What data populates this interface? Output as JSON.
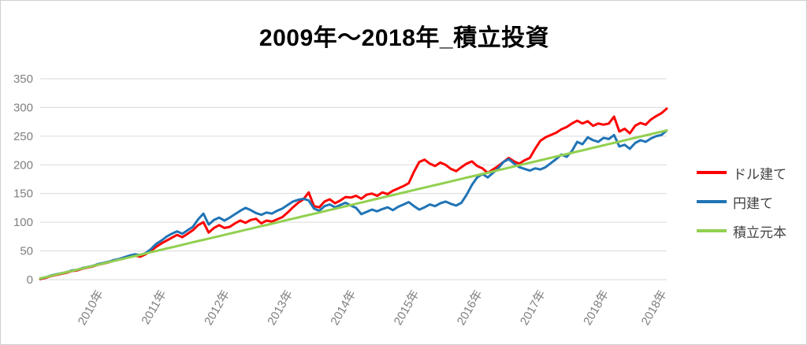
{
  "page": {
    "background": "#ffffff",
    "border_color": "#cfcfcf"
  },
  "chart_data": {
    "type": "line",
    "title": "2009年～2018年_積立投資",
    "xlabel": "",
    "ylabel": "",
    "x": {
      "start_year": 2009,
      "interval_months": 1,
      "points": 120,
      "end_year": 2018
    },
    "x_tick_labels": [
      "2010年",
      "2011年",
      "2012年",
      "2013年",
      "2014年",
      "2015年",
      "2016年",
      "2017年",
      "2018年",
      "2018年"
    ],
    "y_ticks": [
      0,
      50,
      100,
      150,
      200,
      250,
      300,
      350
    ],
    "ylim": [
      0,
      350
    ],
    "grid": true,
    "grid_color": "#d9d9d9",
    "tick_label_color": "#7f7f7f",
    "legend_position": "right",
    "series": [
      {
        "name": "ドル建て",
        "color": "#ff0000",
        "values": [
          1,
          3,
          6,
          8,
          10,
          12,
          15,
          16,
          19,
          21,
          23,
          26,
          28,
          30,
          33,
          35,
          37,
          40,
          42,
          40,
          44,
          50,
          57,
          63,
          68,
          73,
          78,
          74,
          80,
          86,
          95,
          100,
          82,
          90,
          95,
          90,
          92,
          98,
          103,
          99,
          104,
          106,
          98,
          103,
          101,
          105,
          109,
          117,
          126,
          134,
          140,
          152,
          128,
          126,
          136,
          140,
          133,
          138,
          144,
          143,
          146,
          141,
          148,
          150,
          146,
          152,
          149,
          155,
          159,
          163,
          168,
          188,
          205,
          209,
          202,
          198,
          204,
          200,
          193,
          189,
          196,
          202,
          206,
          198,
          194,
          186,
          192,
          198,
          205,
          212,
          206,
          202,
          208,
          212,
          228,
          242,
          248,
          252,
          256,
          262,
          266,
          272,
          277,
          272,
          276,
          268,
          272,
          270,
          272,
          284,
          258,
          263,
          255,
          268,
          273,
          270,
          279,
          285,
          290,
          298
        ]
      },
      {
        "name": "円建て",
        "color": "#2074b5",
        "values": [
          2,
          4,
          7,
          9,
          11,
          13,
          16,
          17,
          20,
          22,
          24,
          27,
          29,
          31,
          34,
          36,
          39,
          42,
          44,
          43,
          46,
          53,
          62,
          68,
          75,
          80,
          84,
          80,
          86,
          92,
          105,
          115,
          96,
          104,
          108,
          103,
          108,
          114,
          120,
          125,
          121,
          116,
          113,
          117,
          115,
          120,
          124,
          130,
          136,
          139,
          141,
          138,
          124,
          120,
          128,
          131,
          126,
          130,
          134,
          129,
          125,
          114,
          118,
          122,
          119,
          123,
          126,
          121,
          127,
          131,
          135,
          128,
          122,
          126,
          131,
          128,
          133,
          136,
          132,
          129,
          134,
          148,
          165,
          178,
          184,
          178,
          186,
          194,
          205,
          210,
          202,
          196,
          193,
          190,
          194,
          192,
          196,
          203,
          210,
          218,
          214,
          224,
          240,
          236,
          248,
          243,
          240,
          247,
          245,
          252,
          232,
          235,
          228,
          238,
          243,
          240,
          246,
          250,
          252,
          260
        ]
      },
      {
        "name": "積立元本",
        "color": "#92d050",
        "values": [
          2.2,
          4.3,
          6.5,
          8.7,
          10.8,
          13.0,
          15.2,
          17.3,
          19.5,
          21.7,
          23.8,
          26.0,
          28.2,
          30.3,
          32.5,
          34.7,
          36.8,
          39.0,
          41.2,
          43.3,
          45.5,
          47.7,
          49.8,
          52.0,
          54.2,
          56.3,
          58.5,
          60.7,
          62.8,
          65.0,
          67.2,
          69.3,
          71.5,
          73.7,
          75.8,
          78.0,
          80.2,
          82.3,
          84.5,
          86.7,
          88.8,
          91.0,
          93.2,
          95.3,
          97.5,
          99.7,
          101.8,
          104.0,
          106.2,
          108.3,
          110.5,
          112.7,
          114.8,
          117.0,
          119.2,
          121.3,
          123.5,
          125.7,
          127.8,
          130.0,
          132.2,
          134.3,
          136.5,
          138.7,
          140.8,
          143.0,
          145.2,
          147.3,
          149.5,
          151.7,
          153.8,
          156.0,
          158.2,
          160.3,
          162.5,
          164.7,
          166.8,
          169.0,
          171.2,
          173.3,
          175.5,
          177.7,
          179.8,
          182.0,
          184.2,
          186.3,
          188.5,
          190.7,
          192.8,
          195.0,
          197.2,
          199.3,
          201.5,
          203.7,
          205.8,
          208.0,
          210.2,
          212.3,
          214.5,
          216.7,
          218.8,
          221.0,
          223.2,
          225.3,
          227.5,
          229.7,
          231.8,
          234.0,
          236.2,
          238.3,
          240.5,
          242.7,
          244.8,
          247.0,
          249.2,
          251.3,
          253.5,
          255.7,
          257.8,
          260.0
        ]
      }
    ]
  }
}
